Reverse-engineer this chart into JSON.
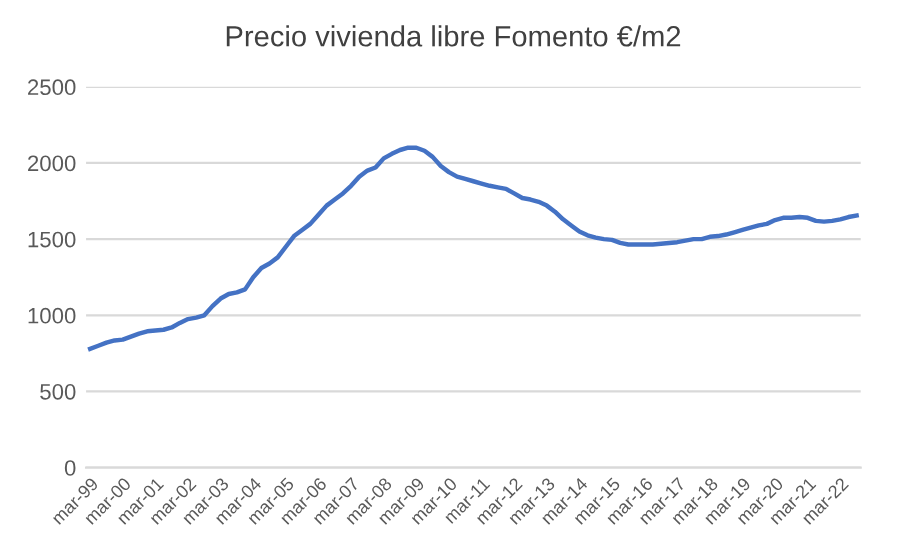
{
  "chart_data": {
    "type": "line",
    "title": "Precio vivienda libre Fomento €/m2",
    "categories": [
      "mar-99",
      null,
      null,
      null,
      "mar-00",
      null,
      null,
      null,
      "mar-01",
      null,
      null,
      null,
      "mar-02",
      null,
      null,
      null,
      "mar-03",
      null,
      null,
      null,
      "mar-04",
      null,
      null,
      null,
      "mar-05",
      null,
      null,
      null,
      "mar-06",
      null,
      null,
      null,
      "mar-07",
      null,
      null,
      null,
      "mar-08",
      null,
      null,
      null,
      "mar-09",
      null,
      null,
      null,
      "mar-10",
      null,
      null,
      null,
      "mar-11",
      null,
      null,
      null,
      "mar-12",
      null,
      null,
      null,
      "mar-13",
      null,
      null,
      null,
      "mar-14",
      null,
      null,
      null,
      "mar-15",
      null,
      null,
      null,
      "mar-16",
      null,
      null,
      null,
      "mar-17",
      null,
      null,
      null,
      "mar-18",
      null,
      null,
      null,
      "mar-19",
      null,
      null,
      null,
      "mar-20",
      null,
      null,
      null,
      "mar-21",
      null,
      null,
      null,
      "mar-22",
      null,
      null
    ],
    "series": [
      {
        "color": "#4472c4",
        "values": [
          780,
          800,
          820,
          835,
          840,
          860,
          880,
          895,
          900,
          905,
          920,
          950,
          975,
          985,
          1000,
          1060,
          1110,
          1140,
          1150,
          1170,
          1250,
          1310,
          1340,
          1380,
          1450,
          1520,
          1560,
          1600,
          1660,
          1720,
          1760,
          1800,
          1850,
          1910,
          1950,
          1970,
          2030,
          2060,
          2085,
          2100,
          2100,
          2080,
          2040,
          1980,
          1940,
          1910,
          1895,
          1880,
          1865,
          1850,
          1840,
          1830,
          1800,
          1770,
          1760,
          1745,
          1720,
          1680,
          1630,
          1590,
          1550,
          1525,
          1510,
          1500,
          1495,
          1475,
          1465,
          1465,
          1465,
          1465,
          1470,
          1475,
          1480,
          1490,
          1500,
          1500,
          1515,
          1520,
          1530,
          1545,
          1560,
          1575,
          1590,
          1600,
          1625,
          1640,
          1640,
          1645,
          1640,
          1620,
          1615,
          1620,
          1630,
          1645,
          1655
        ]
      }
    ],
    "ylim": [
      0,
      2500
    ],
    "yticks": [
      0,
      500,
      1000,
      1500,
      2000,
      2500
    ],
    "grid": "y",
    "legend": false,
    "marker": "none",
    "line_style": "solid"
  }
}
